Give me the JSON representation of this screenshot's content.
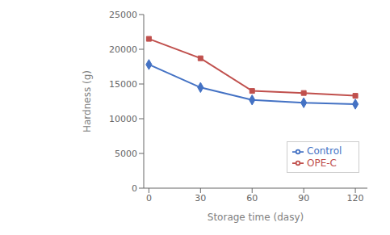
{
  "chart_data": {
    "type": "line",
    "x": [
      0,
      30,
      60,
      90,
      120
    ],
    "series": [
      {
        "name": "Control",
        "color": "#4472C4",
        "marker": "diamond",
        "values": [
          17800,
          14500,
          12700,
          12300,
          12100
        ]
      },
      {
        "name": "OPE-C",
        "color": "#C0504D",
        "marker": "square",
        "values": [
          21500,
          18700,
          14000,
          13700,
          13300
        ]
      }
    ],
    "xlabel": "Storage time (dasy)",
    "ylabel": "Hardness (g)",
    "xlim": [
      -3,
      127
    ],
    "xticks": [
      0,
      30,
      60,
      90,
      120
    ],
    "ylim": [
      0,
      25000
    ],
    "yticks": [
      0,
      5000,
      10000,
      15000,
      20000,
      25000
    ],
    "grid": false,
    "legend": "lower right"
  }
}
